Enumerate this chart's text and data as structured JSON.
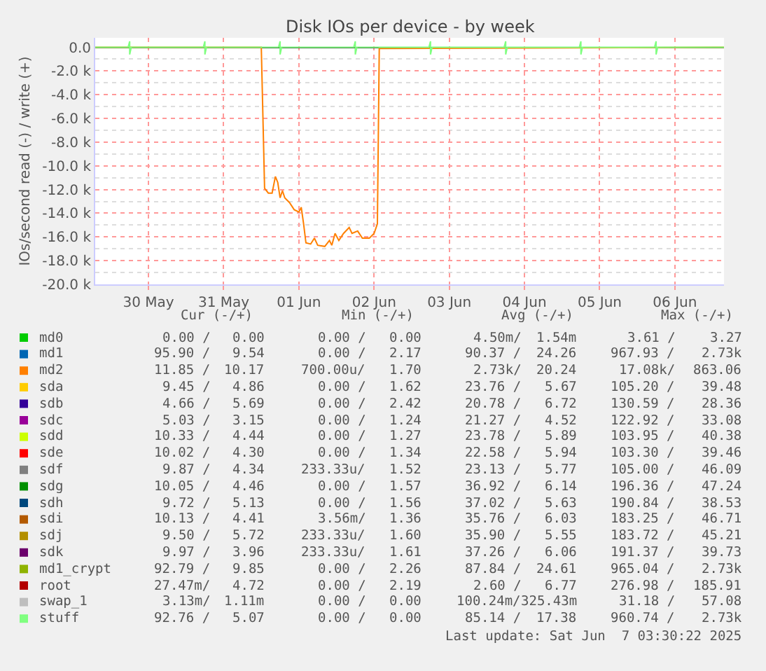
{
  "chart_data": {
    "type": "line",
    "title": "Disk IOs per device - by week",
    "ylabel": "IOs/second read (-) / write (+)",
    "xlim": [
      "2025-05-29T07:00",
      "2025-06-06T15:40"
    ],
    "xticks": [
      {
        "value": "2025-05-30",
        "label": "30 May"
      },
      {
        "value": "2025-05-31",
        "label": "31 May"
      },
      {
        "value": "2025-06-01",
        "label": "01 Jun"
      },
      {
        "value": "2025-06-02",
        "label": "02 Jun"
      },
      {
        "value": "2025-06-03",
        "label": "03 Jun"
      },
      {
        "value": "2025-06-04",
        "label": "04 Jun"
      },
      {
        "value": "2025-06-05",
        "label": "05 Jun"
      },
      {
        "value": "2025-06-06",
        "label": "06 Jun"
      }
    ],
    "ylim": [
      -20000,
      800
    ],
    "yticks": [
      {
        "value": -20000,
        "label": "-20.0 k"
      },
      {
        "value": -18000,
        "label": "-18.0 k"
      },
      {
        "value": -16000,
        "label": "-16.0 k"
      },
      {
        "value": -14000,
        "label": "-14.0 k"
      },
      {
        "value": -12000,
        "label": "-12.0 k"
      },
      {
        "value": -10000,
        "label": "-10.0 k"
      },
      {
        "value": -8000,
        "label": "-8.0 k"
      },
      {
        "value": -6000,
        "label": "-6.0 k"
      },
      {
        "value": -4000,
        "label": "-4.0 k"
      },
      {
        "value": -2000,
        "label": "-2.0 k"
      },
      {
        "value": 0,
        "label": "0.0"
      }
    ],
    "grid": true,
    "legend": "bottom",
    "line_style": "solid",
    "marker": "none",
    "series": [
      {
        "name": "md0",
        "color": "#00cc00",
        "values": [
          null,
          null
        ]
      },
      {
        "name": "md1",
        "color": "#0066b3",
        "values": [
          null,
          null
        ]
      },
      {
        "name": "md2",
        "color": "#ff8000",
        "x": [
          "2025-05-29T07:00",
          "2025-05-31T12:00",
          "2025-05-31T13:03",
          "2025-05-31T14:15",
          "2025-05-31T15:27",
          "2025-05-31T16:30",
          "2025-05-31T17:15",
          "2025-05-31T18:00",
          "2025-05-31T18:45",
          "2025-05-31T19:30",
          "2025-05-31T21:00",
          "2025-05-31T22:30",
          "2025-06-01T00:00",
          "2025-06-01T00:45",
          "2025-06-01T01:30",
          "2025-06-01T02:15",
          "2025-06-01T03:45",
          "2025-06-01T04:57",
          "2025-06-01T06:00",
          "2025-06-01T08:15",
          "2025-06-01T09:45",
          "2025-06-01T10:30",
          "2025-06-01T11:33",
          "2025-06-01T12:45",
          "2025-06-01T14:15",
          "2025-06-01T16:03",
          "2025-06-01T16:57",
          "2025-06-01T18:45",
          "2025-06-01T20:15",
          "2025-06-01T22:30",
          "2025-06-02T00:00",
          "2025-06-02T01:03",
          "2025-06-02T01:39",
          "2025-06-06T15:40"
        ],
        "values": [
          0,
          0,
          -11900,
          -12300,
          -12300,
          -10900,
          -11400,
          -12700,
          -12100,
          -12700,
          -13100,
          -13700,
          -13900,
          -13500,
          -14900,
          -16500,
          -16600,
          -16100,
          -16700,
          -16800,
          -16300,
          -16700,
          -15700,
          -16300,
          -15700,
          -15200,
          -15700,
          -15500,
          -16100,
          -16100,
          -15700,
          -14900,
          -100,
          0
        ]
      },
      {
        "name": "sda",
        "color": "#ffcc00",
        "values": [
          null,
          null
        ]
      },
      {
        "name": "sdb",
        "color": "#330099",
        "values": [
          null,
          null
        ]
      },
      {
        "name": "sdc",
        "color": "#990099",
        "values": [
          null,
          null
        ]
      },
      {
        "name": "sdd",
        "color": "#ccff00",
        "values": [
          null,
          null
        ]
      },
      {
        "name": "sde",
        "color": "#ff0000",
        "values": [
          null,
          null
        ]
      },
      {
        "name": "sdf",
        "color": "#808080",
        "values": [
          null,
          null
        ]
      },
      {
        "name": "sdg",
        "color": "#008f00",
        "values": [
          null,
          null
        ]
      },
      {
        "name": "sdh",
        "color": "#00487d",
        "values": [
          null,
          null
        ]
      },
      {
        "name": "sdi",
        "color": "#b35a00",
        "values": [
          null,
          null
        ]
      },
      {
        "name": "sdj",
        "color": "#b38f00",
        "values": [
          null,
          null
        ]
      },
      {
        "name": "sdk",
        "color": "#6b006b",
        "values": [
          null,
          null
        ]
      },
      {
        "name": "md1_crypt",
        "color": "#8fb300",
        "values": [
          null,
          null
        ]
      },
      {
        "name": "root",
        "color": "#b30000",
        "values": [
          null,
          null
        ]
      },
      {
        "name": "swap_1",
        "color": "#bebebe",
        "values": [
          null,
          null
        ]
      },
      {
        "name": "stuff",
        "color": "#80ff80",
        "x": [
          "2025-05-29T07:00",
          "2025-05-29T17:30",
          "2025-05-29T18:00",
          "2025-05-29T18:00",
          "2025-05-29T18:30",
          "2025-05-30T17:30",
          "2025-05-30T18:00",
          "2025-05-30T18:00",
          "2025-05-30T18:30",
          "2025-05-31T17:30",
          "2025-05-31T18:00",
          "2025-05-31T18:00",
          "2025-05-31T18:30",
          "2025-06-01T17:30",
          "2025-06-01T18:00",
          "2025-06-01T18:00",
          "2025-06-01T18:30",
          "2025-06-02T17:30",
          "2025-06-02T18:00",
          "2025-06-02T18:00",
          "2025-06-02T18:30",
          "2025-06-03T17:30",
          "2025-06-03T18:00",
          "2025-06-03T18:00",
          "2025-06-03T18:30",
          "2025-06-04T17:30",
          "2025-06-04T18:00",
          "2025-06-04T18:00",
          "2025-06-04T18:30",
          "2025-06-05T17:30",
          "2025-06-05T18:00",
          "2025-06-05T18:00",
          "2025-06-05T18:30",
          "2025-06-06T15:40"
        ],
        "values": [
          0,
          0,
          500,
          -600,
          0,
          0,
          500,
          -600,
          0,
          0,
          500,
          -600,
          0,
          0,
          500,
          -600,
          0,
          0,
          500,
          -600,
          0,
          0,
          500,
          -600,
          0,
          0,
          500,
          -600,
          0,
          0,
          500,
          -600,
          0,
          0
        ]
      }
    ],
    "annotations": [
      "Cur (-/+)",
      "Min (-/+)",
      "Avg (-/+)",
      "Max (-/+)",
      "0.00 /",
      "0.00",
      "0.00 /",
      "0.00",
      "4.50m/",
      "1.54m",
      "3.61 /",
      "3.27",
      "95.90 /",
      "9.54",
      "0.00 /",
      "2.17",
      "90.37 /",
      "24.26",
      "967.93 /",
      "2.73k",
      "11.85 /",
      "10.17",
      "700.00u/",
      "1.70",
      "2.73k/",
      "20.24",
      "17.08k/",
      "863.06",
      "9.45 /",
      "4.86",
      "0.00 /",
      "1.62",
      "23.76 /",
      "5.67",
      "105.20 /",
      "39.48",
      "4.66 /",
      "5.69",
      "0.00 /",
      "2.42",
      "20.78 /",
      "6.72",
      "130.59 /",
      "28.36",
      "5.03 /",
      "3.15",
      "0.00 /",
      "1.24",
      "21.27 /",
      "4.52",
      "122.92 /",
      "33.08",
      "10.33 /",
      "4.44",
      "0.00 /",
      "1.27",
      "23.78 /",
      "5.89",
      "103.95 /",
      "40.38",
      "10.02 /",
      "4.30",
      "0.00 /",
      "1.34",
      "22.58 /",
      "5.94",
      "103.30 /",
      "39.46",
      "9.87 /",
      "4.34",
      "233.33u/",
      "1.52",
      "23.13 /",
      "5.77",
      "105.00 /",
      "46.09",
      "10.05 /",
      "4.46",
      "0.00 /",
      "1.57",
      "36.92 /",
      "6.14",
      "196.36 /",
      "47.24",
      "9.72 /",
      "5.13",
      "0.00 /",
      "1.56",
      "37.02 /",
      "5.63",
      "190.84 /",
      "38.53",
      "10.13 /",
      "4.41",
      "3.56m/",
      "1.36",
      "35.76 /",
      "6.03",
      "183.25 /",
      "46.71",
      "9.50 /",
      "5.72",
      "233.33u/",
      "1.60",
      "35.90 /",
      "5.55",
      "183.72 /",
      "45.21",
      "9.97 /",
      "3.96",
      "233.33u/",
      "1.61",
      "37.26 /",
      "6.06",
      "191.37 /",
      "39.73",
      "92.79 /",
      "9.85",
      "0.00 /",
      "2.26",
      "87.84 /",
      "24.61",
      "965.04 /",
      "2.73k",
      "27.47m/",
      "4.72",
      "0.00 /",
      "2.19",
      "2.60 /",
      "6.77",
      "276.98 /",
      "185.91",
      "3.13m/",
      "1.11m",
      "0.00 /",
      "0.00",
      "100.24m/",
      "325.43m",
      "31.18 /",
      "57.08",
      "92.76 /",
      "5.07",
      "0.00 /",
      "0.00",
      "85.14 /",
      "17.38",
      "960.74 /",
      "2.73k",
      "Last update: Sat Jun  7 03:30:22 2025"
    ]
  }
}
